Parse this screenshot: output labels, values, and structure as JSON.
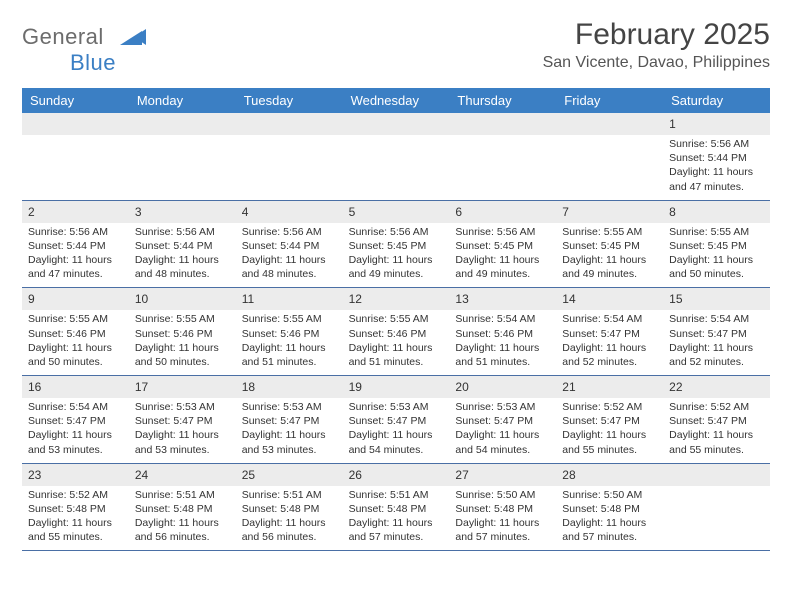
{
  "brand": {
    "name_a": "General",
    "name_b": "Blue",
    "mark_color": "#3b7fc4"
  },
  "title": "February 2025",
  "location": "San Vicente, Davao, Philippines",
  "colors": {
    "header_bg": "#3b7fc4",
    "header_text": "#ffffff",
    "band": "#ececec",
    "rule": "#4a6fa5",
    "text": "#333333"
  },
  "day_headers": [
    "Sunday",
    "Monday",
    "Tuesday",
    "Wednesday",
    "Thursday",
    "Friday",
    "Saturday"
  ],
  "weeks": [
    [
      null,
      null,
      null,
      null,
      null,
      null,
      {
        "d": "1",
        "sr": "5:56 AM",
        "ss": "5:44 PM",
        "dl": "11 hours and 47 minutes."
      }
    ],
    [
      {
        "d": "2",
        "sr": "5:56 AM",
        "ss": "5:44 PM",
        "dl": "11 hours and 47 minutes."
      },
      {
        "d": "3",
        "sr": "5:56 AM",
        "ss": "5:44 PM",
        "dl": "11 hours and 48 minutes."
      },
      {
        "d": "4",
        "sr": "5:56 AM",
        "ss": "5:44 PM",
        "dl": "11 hours and 48 minutes."
      },
      {
        "d": "5",
        "sr": "5:56 AM",
        "ss": "5:45 PM",
        "dl": "11 hours and 49 minutes."
      },
      {
        "d": "6",
        "sr": "5:56 AM",
        "ss": "5:45 PM",
        "dl": "11 hours and 49 minutes."
      },
      {
        "d": "7",
        "sr": "5:55 AM",
        "ss": "5:45 PM",
        "dl": "11 hours and 49 minutes."
      },
      {
        "d": "8",
        "sr": "5:55 AM",
        "ss": "5:45 PM",
        "dl": "11 hours and 50 minutes."
      }
    ],
    [
      {
        "d": "9",
        "sr": "5:55 AM",
        "ss": "5:46 PM",
        "dl": "11 hours and 50 minutes."
      },
      {
        "d": "10",
        "sr": "5:55 AM",
        "ss": "5:46 PM",
        "dl": "11 hours and 50 minutes."
      },
      {
        "d": "11",
        "sr": "5:55 AM",
        "ss": "5:46 PM",
        "dl": "11 hours and 51 minutes."
      },
      {
        "d": "12",
        "sr": "5:55 AM",
        "ss": "5:46 PM",
        "dl": "11 hours and 51 minutes."
      },
      {
        "d": "13",
        "sr": "5:54 AM",
        "ss": "5:46 PM",
        "dl": "11 hours and 51 minutes."
      },
      {
        "d": "14",
        "sr": "5:54 AM",
        "ss": "5:47 PM",
        "dl": "11 hours and 52 minutes."
      },
      {
        "d": "15",
        "sr": "5:54 AM",
        "ss": "5:47 PM",
        "dl": "11 hours and 52 minutes."
      }
    ],
    [
      {
        "d": "16",
        "sr": "5:54 AM",
        "ss": "5:47 PM",
        "dl": "11 hours and 53 minutes."
      },
      {
        "d": "17",
        "sr": "5:53 AM",
        "ss": "5:47 PM",
        "dl": "11 hours and 53 minutes."
      },
      {
        "d": "18",
        "sr": "5:53 AM",
        "ss": "5:47 PM",
        "dl": "11 hours and 53 minutes."
      },
      {
        "d": "19",
        "sr": "5:53 AM",
        "ss": "5:47 PM",
        "dl": "11 hours and 54 minutes."
      },
      {
        "d": "20",
        "sr": "5:53 AM",
        "ss": "5:47 PM",
        "dl": "11 hours and 54 minutes."
      },
      {
        "d": "21",
        "sr": "5:52 AM",
        "ss": "5:47 PM",
        "dl": "11 hours and 55 minutes."
      },
      {
        "d": "22",
        "sr": "5:52 AM",
        "ss": "5:47 PM",
        "dl": "11 hours and 55 minutes."
      }
    ],
    [
      {
        "d": "23",
        "sr": "5:52 AM",
        "ss": "5:48 PM",
        "dl": "11 hours and 55 minutes."
      },
      {
        "d": "24",
        "sr": "5:51 AM",
        "ss": "5:48 PM",
        "dl": "11 hours and 56 minutes."
      },
      {
        "d": "25",
        "sr": "5:51 AM",
        "ss": "5:48 PM",
        "dl": "11 hours and 56 minutes."
      },
      {
        "d": "26",
        "sr": "5:51 AM",
        "ss": "5:48 PM",
        "dl": "11 hours and 57 minutes."
      },
      {
        "d": "27",
        "sr": "5:50 AM",
        "ss": "5:48 PM",
        "dl": "11 hours and 57 minutes."
      },
      {
        "d": "28",
        "sr": "5:50 AM",
        "ss": "5:48 PM",
        "dl": "11 hours and 57 minutes."
      },
      null
    ]
  ]
}
